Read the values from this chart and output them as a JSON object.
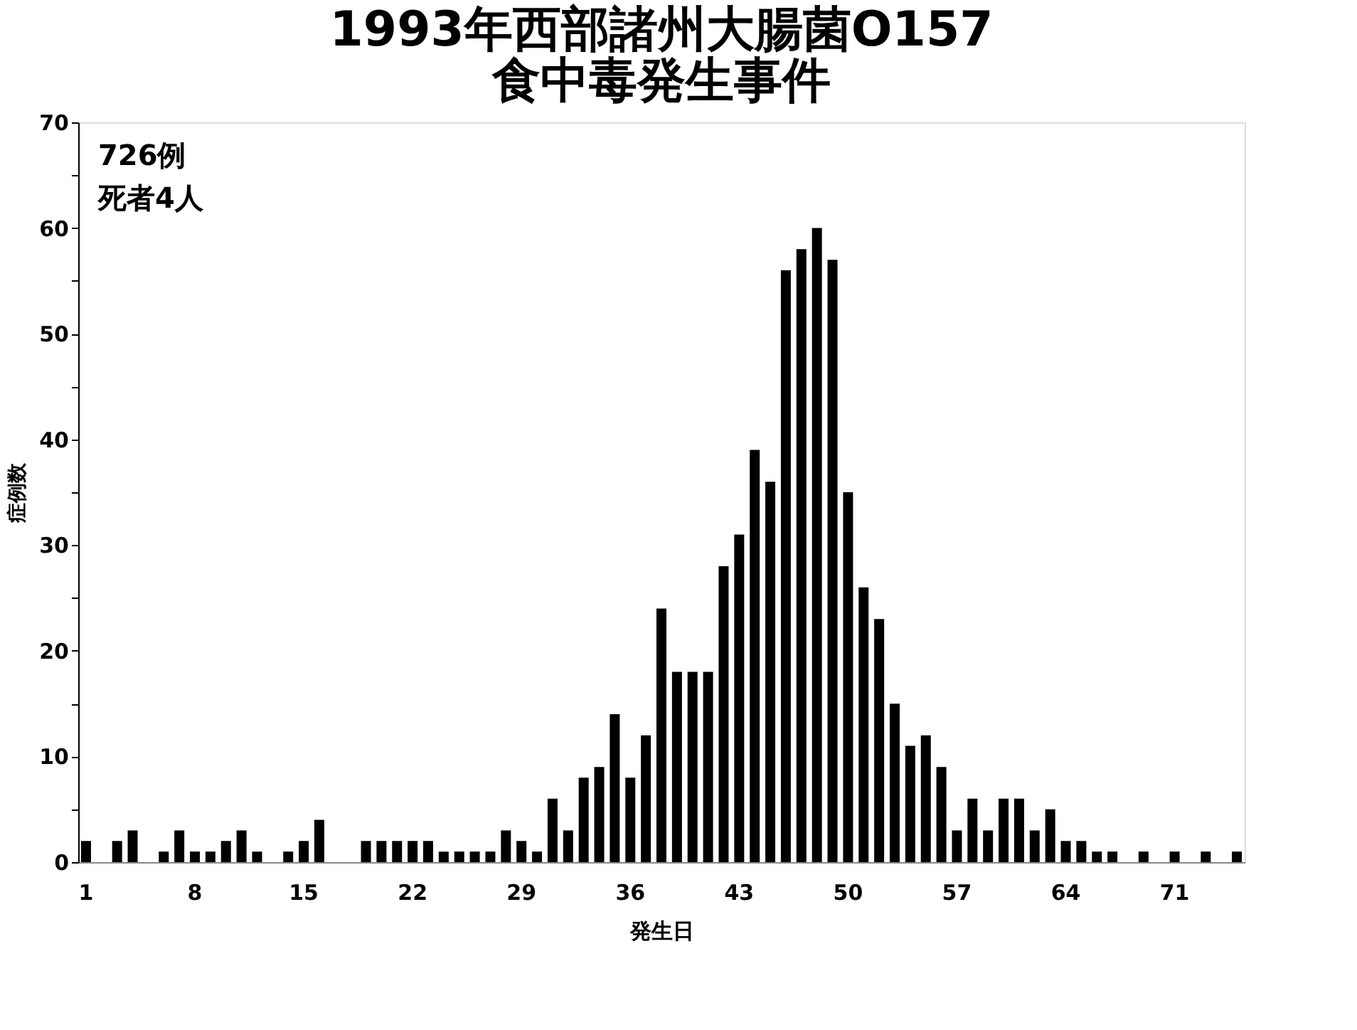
{
  "chart_data": {
    "type": "bar",
    "title": [
      "1993年西部諸州大腸菌O157",
      "食中毒発生事件"
    ],
    "xlabel": "発生日",
    "ylabel": "症例数",
    "categories": [
      "1",
      null,
      null,
      null,
      null,
      null,
      null,
      "8",
      null,
      null,
      null,
      null,
      null,
      null,
      "15",
      null,
      null,
      null,
      null,
      null,
      null,
      "22",
      null,
      null,
      null,
      null,
      null,
      null,
      "29",
      null,
      null,
      null,
      null,
      null,
      null,
      "36",
      null,
      null,
      null,
      null,
      null,
      null,
      "43",
      null,
      null,
      null,
      null,
      null,
      null,
      "50",
      null,
      null,
      null,
      null,
      null,
      null,
      "57",
      null,
      null,
      null,
      null,
      null,
      null,
      "64",
      null,
      null,
      null,
      null,
      null,
      null,
      "71",
      null,
      null,
      null,
      null
    ],
    "values": [
      2,
      0,
      2,
      3,
      0,
      1,
      3,
      1,
      1,
      2,
      3,
      1,
      0,
      1,
      2,
      4,
      0,
      0,
      2,
      2,
      2,
      2,
      2,
      1,
      1,
      1,
      1,
      3,
      2,
      1,
      6,
      3,
      8,
      9,
      14,
      8,
      12,
      24,
      18,
      18,
      18,
      28,
      31,
      39,
      36,
      56,
      58,
      60,
      57,
      35,
      26,
      23,
      15,
      11,
      12,
      9,
      3,
      6,
      3,
      6,
      6,
      3,
      5,
      2,
      2,
      1,
      1,
      0,
      1,
      0,
      1,
      0,
      1,
      0,
      1
    ],
    "color": "#000000",
    "ylim": [
      0,
      70
    ],
    "yticks": [
      0,
      {
        "value": 5,
        "label": null
      },
      10,
      {
        "value": 15,
        "label": null
      },
      20,
      {
        "value": 25,
        "label": null
      },
      30,
      {
        "value": 35,
        "label": null
      },
      40,
      {
        "value": 45,
        "label": null
      },
      50,
      {
        "value": 55,
        "label": null
      },
      60,
      {
        "value": 65,
        "label": null
      },
      70
    ],
    "grid": false,
    "annotations": [
      "726例",
      "死者4人"
    ]
  }
}
